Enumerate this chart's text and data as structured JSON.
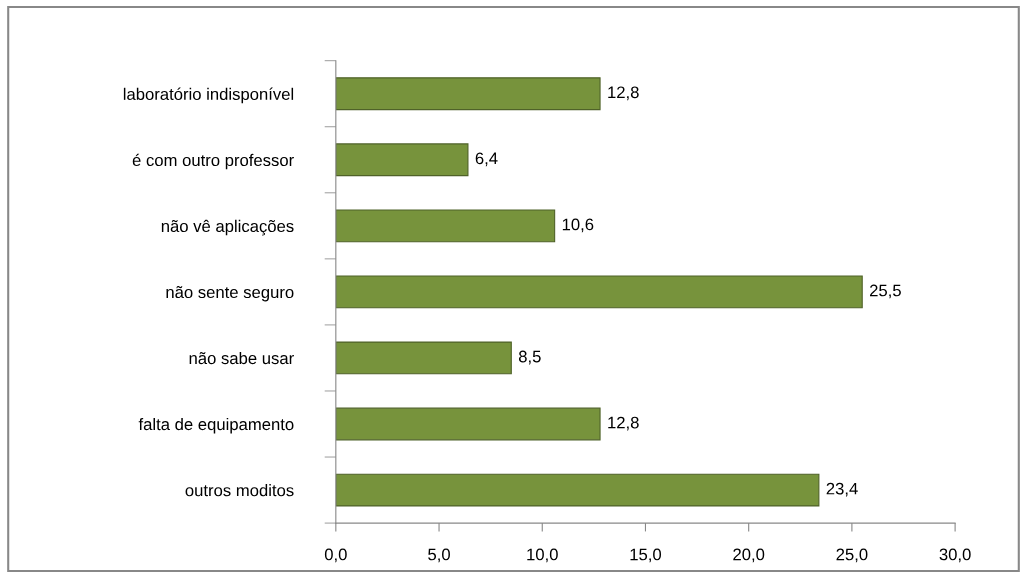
{
  "chart_data": {
    "type": "bar",
    "orientation": "horizontal",
    "categories": [
      "laboratório indisponível",
      "é com outro professor",
      "não vê aplicações",
      "não sente seguro",
      "não sabe usar",
      "falta de equipamento",
      "outros moditos"
    ],
    "values": [
      12.8,
      6.4,
      10.6,
      25.5,
      8.5,
      12.8,
      23.4
    ],
    "value_labels": [
      "12,8",
      "6,4",
      "10,6",
      "25,5",
      "8,5",
      "12,8",
      "23,4"
    ],
    "color": "#77933c",
    "xlim": [
      0,
      30
    ],
    "xticks": [
      {
        "value": 0,
        "label": "0,0"
      },
      {
        "value": 5,
        "label": "5,0"
      },
      {
        "value": 10,
        "label": "10,0"
      },
      {
        "value": 15,
        "label": "15,0"
      },
      {
        "value": 20,
        "label": "20,0"
      },
      {
        "value": 25,
        "label": "25,0"
      },
      {
        "value": 30,
        "label": "30,0"
      }
    ],
    "grid": false,
    "legend": false
  }
}
